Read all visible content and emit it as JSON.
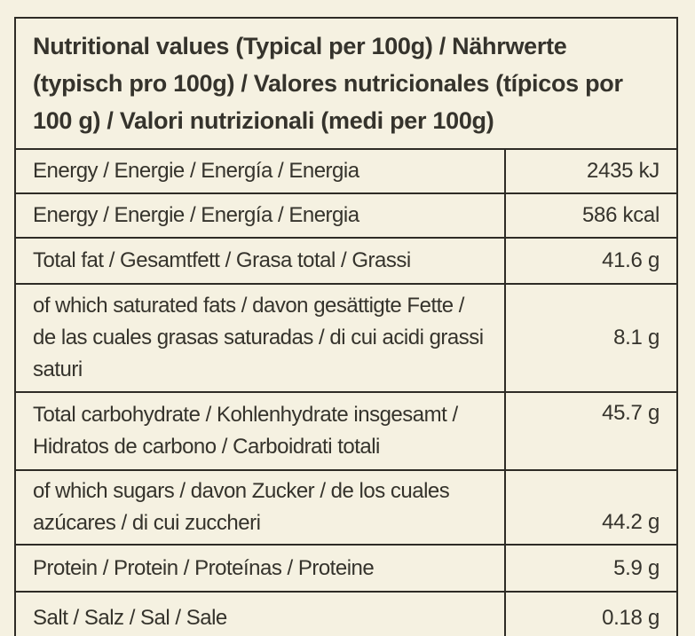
{
  "page": {
    "background_color": "#f5f1e1",
    "ink_color": "#35332c",
    "border_color": "#2e2c26"
  },
  "table": {
    "header": "Nutritional values (Typical per 100g) / Nährwerte (typisch pro 100g) / Valores nutricionales (típicos por 100 g) / Valori nutrizionali (medi per 100g)",
    "rows": [
      {
        "label": "Energy / Energie / Energía / Energia",
        "value": "2435 kJ"
      },
      {
        "label": "Energy / Energie / Energía / Energia",
        "value": "586 kcal"
      },
      {
        "label": "Total fat / Gesamtfett / Grasa total / Grassi",
        "value": "41.6 g"
      },
      {
        "label": "of which saturated fats / davon gesättigte Fette / de las cuales grasas saturadas / di cui acidi grassi saturi",
        "value": "8.1 g"
      },
      {
        "label": "Total carbohydrate / Kohlenhydrate insgesamt / Hidratos de carbono / Carboidrati totali",
        "value": "45.7 g"
      },
      {
        "label": "of which sugars / davon Zucker / de los cuales azúcares / di cui zuccheri",
        "value": "44.2 g"
      },
      {
        "label": "Protein / Protein / Proteínas / Proteine",
        "value": "5.9 g"
      },
      {
        "label": "Salt / Salz / Sal / Sale",
        "value": "0.18 g"
      }
    ]
  }
}
